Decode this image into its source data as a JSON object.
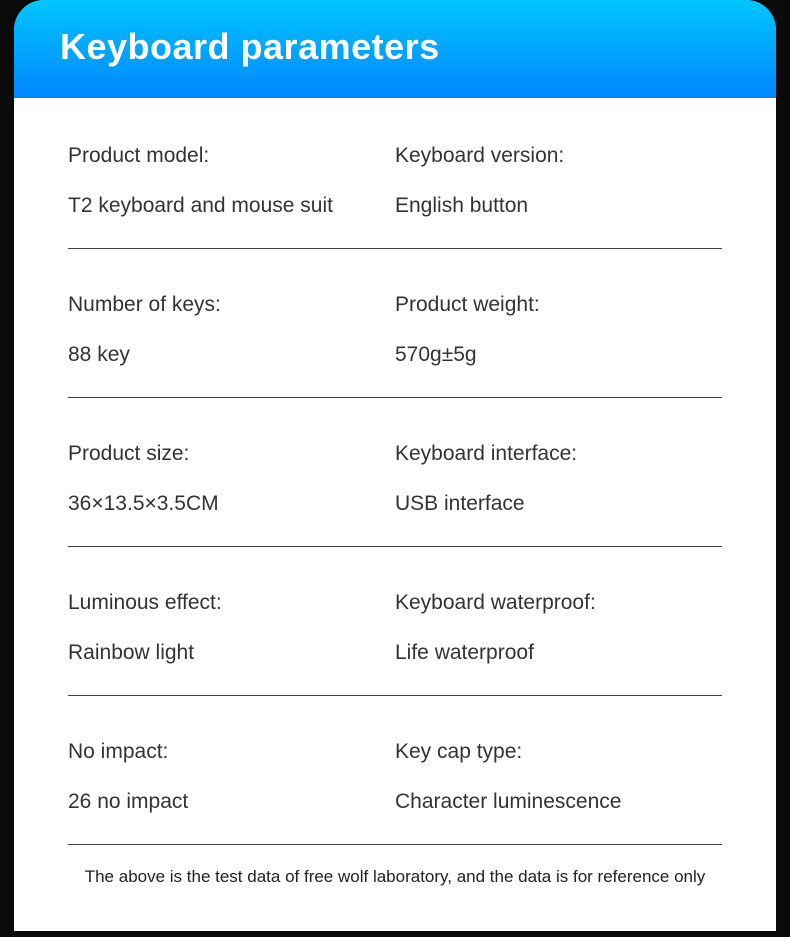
{
  "header": {
    "title": "Keyboard parameters"
  },
  "specs": [
    {
      "left": {
        "label": "Product model:",
        "value": "T2 keyboard and mouse suit"
      },
      "right": {
        "label": "Keyboard version:",
        "value": "English button"
      }
    },
    {
      "left": {
        "label": "Number of keys:",
        "value": "88 key"
      },
      "right": {
        "label": "Product weight:",
        "value": "570g±5g"
      }
    },
    {
      "left": {
        "label": "Product size:",
        "value": "36×13.5×3.5CM"
      },
      "right": {
        "label": "Keyboard interface:",
        "value": "USB interface"
      }
    },
    {
      "left": {
        "label": "Luminous effect:",
        "value": "Rainbow light"
      },
      "right": {
        "label": "Keyboard waterproof:",
        "value": "Life waterproof"
      }
    },
    {
      "left": {
        "label": "No impact:",
        "value": "26 no impact"
      },
      "right": {
        "label": "Key cap type:",
        "value": "Character luminescence"
      }
    }
  ],
  "footnote": "The above is the test data of free wolf laboratory, and the data is for reference only",
  "styling": {
    "card_bg": "#ffffff",
    "page_bg": "#0a0a0a",
    "header_gradient_top": "#00c6ff",
    "header_gradient_bottom": "#0086ff",
    "header_text_color": "#ffffff",
    "header_fontsize": 36,
    "text_color": "#333333",
    "text_fontsize": 21,
    "border_color": "#404040",
    "footnote_fontsize": 17,
    "border_radius": 30
  }
}
